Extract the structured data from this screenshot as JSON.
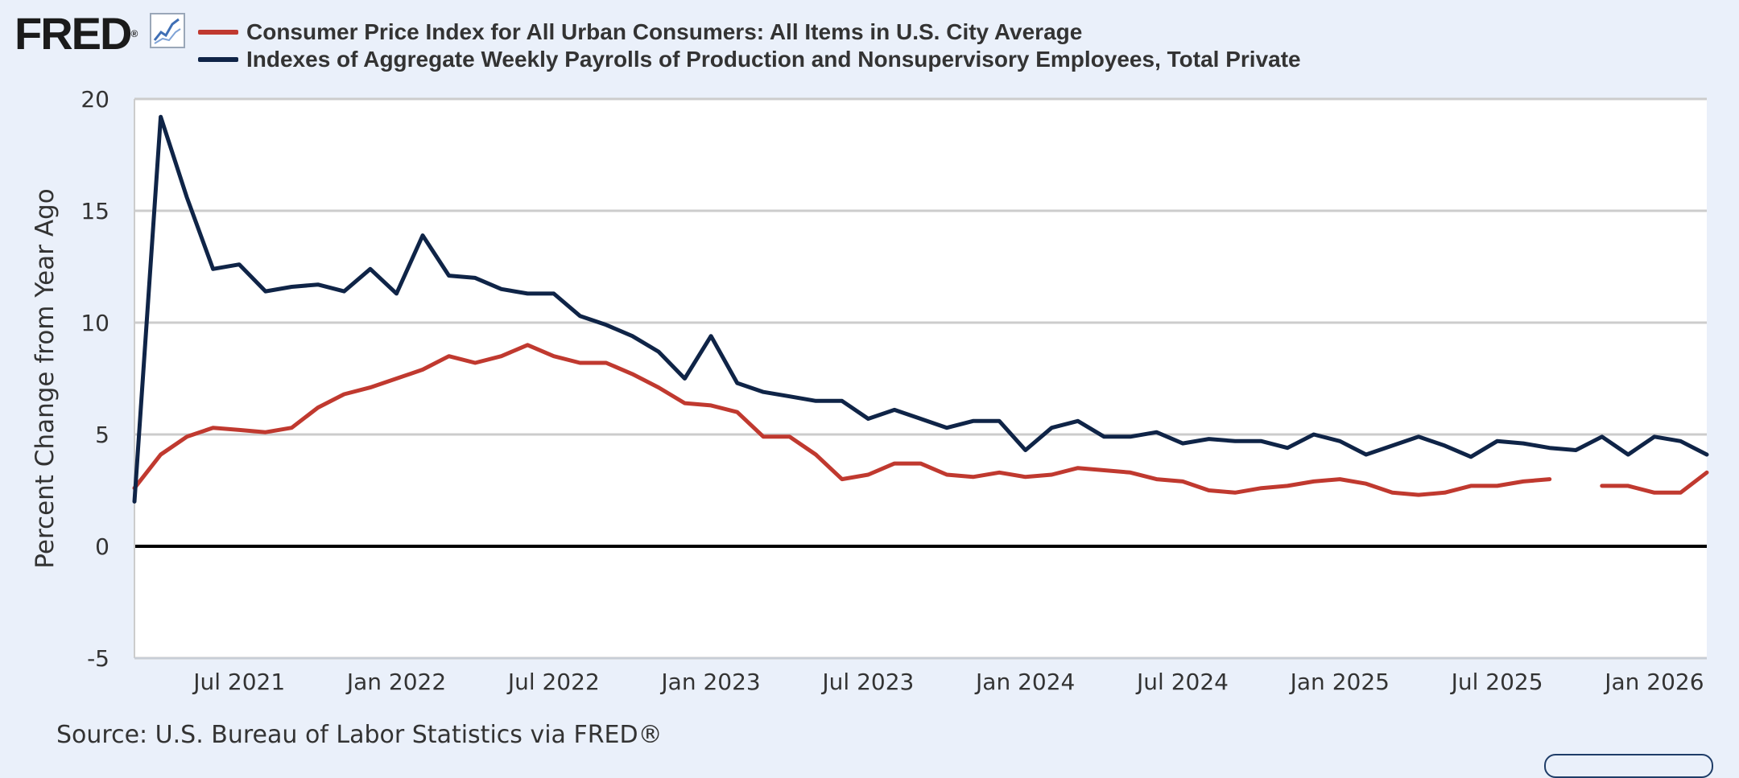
{
  "header": {
    "logo_text": "FRED",
    "logo_mark": "®",
    "icon": "line-graph-icon"
  },
  "chart_data": {
    "type": "line",
    "ylabel": "Percent Change from Year Ago",
    "ylim": [
      -5,
      20
    ],
    "yticks": [
      -5,
      0,
      5,
      10,
      15,
      20
    ],
    "xlim": [
      "2021-03",
      "2026-03"
    ],
    "xticks": [
      {
        "date": "2021-07",
        "label": "Jul 2021"
      },
      {
        "date": "2022-01",
        "label": "Jan 2022"
      },
      {
        "date": "2022-07",
        "label": "Jul 2022"
      },
      {
        "date": "2023-01",
        "label": "Jan 2023"
      },
      {
        "date": "2023-07",
        "label": "Jul 2023"
      },
      {
        "date": "2024-01",
        "label": "Jan 2024"
      },
      {
        "date": "2024-07",
        "label": "Jul 2024"
      },
      {
        "date": "2025-01",
        "label": "Jan 2025"
      },
      {
        "date": "2025-07",
        "label": "Jul 2025"
      },
      {
        "date": "2026-01",
        "label": "Jan 2026"
      }
    ],
    "grid": true,
    "legend_position": "top-left",
    "series": [
      {
        "name": "Consumer Price Index for All Urban Consumers: All Items in U.S. City Average",
        "color": "#c0392f",
        "points": [
          [
            "2021-03",
            2.6
          ],
          [
            "2021-04",
            4.1
          ],
          [
            "2021-05",
            4.9
          ],
          [
            "2021-06",
            5.3
          ],
          [
            "2021-07",
            5.2
          ],
          [
            "2021-08",
            5.1
          ],
          [
            "2021-09",
            5.3
          ],
          [
            "2021-10",
            6.2
          ],
          [
            "2021-11",
            6.8
          ],
          [
            "2021-12",
            7.1
          ],
          [
            "2022-01",
            7.5
          ],
          [
            "2022-02",
            7.9
          ],
          [
            "2022-03",
            8.5
          ],
          [
            "2022-04",
            8.2
          ],
          [
            "2022-05",
            8.5
          ],
          [
            "2022-06",
            9.0
          ],
          [
            "2022-07",
            8.5
          ],
          [
            "2022-08",
            8.2
          ],
          [
            "2022-09",
            8.2
          ],
          [
            "2022-10",
            7.7
          ],
          [
            "2022-11",
            7.1
          ],
          [
            "2022-12",
            6.4
          ],
          [
            "2023-01",
            6.3
          ],
          [
            "2023-02",
            6.0
          ],
          [
            "2023-03",
            4.9
          ],
          [
            "2023-04",
            4.9
          ],
          [
            "2023-05",
            4.1
          ],
          [
            "2023-06",
            3.0
          ],
          [
            "2023-07",
            3.2
          ],
          [
            "2023-08",
            3.7
          ],
          [
            "2023-09",
            3.7
          ],
          [
            "2023-10",
            3.2
          ],
          [
            "2023-11",
            3.1
          ],
          [
            "2023-12",
            3.3
          ],
          [
            "2024-01",
            3.1
          ],
          [
            "2024-02",
            3.2
          ],
          [
            "2024-03",
            3.5
          ],
          [
            "2024-04",
            3.4
          ],
          [
            "2024-05",
            3.3
          ],
          [
            "2024-06",
            3.0
          ],
          [
            "2024-07",
            2.9
          ],
          [
            "2024-08",
            2.5
          ],
          [
            "2024-09",
            2.4
          ],
          [
            "2024-10",
            2.6
          ],
          [
            "2024-11",
            2.7
          ],
          [
            "2024-12",
            2.9
          ],
          [
            "2025-01",
            3.0
          ],
          [
            "2025-02",
            2.8
          ],
          [
            "2025-03",
            2.4
          ],
          [
            "2025-04",
            2.3
          ],
          [
            "2025-05",
            2.4
          ],
          [
            "2025-06",
            2.7
          ],
          [
            "2025-07",
            2.7
          ],
          [
            "2025-08",
            2.9
          ],
          [
            "2025-09",
            3.0
          ],
          [
            "2025-10",
            null
          ],
          [
            "2025-11",
            2.7
          ],
          [
            "2025-12",
            2.7
          ],
          [
            "2026-01",
            2.4
          ],
          [
            "2026-02",
            2.4
          ],
          [
            "2026-03",
            3.3
          ]
        ]
      },
      {
        "name": "Indexes of Aggregate Weekly Payrolls of Production and Nonsupervisory Employees, Total Private",
        "color": "#0f2447",
        "points": [
          [
            "2021-03",
            2.0
          ],
          [
            "2021-04",
            19.2
          ],
          [
            "2021-05",
            15.6
          ],
          [
            "2021-06",
            12.4
          ],
          [
            "2021-07",
            12.6
          ],
          [
            "2021-08",
            11.4
          ],
          [
            "2021-09",
            11.6
          ],
          [
            "2021-10",
            11.7
          ],
          [
            "2021-11",
            11.4
          ],
          [
            "2021-12",
            12.4
          ],
          [
            "2022-01",
            11.3
          ],
          [
            "2022-02",
            13.9
          ],
          [
            "2022-03",
            12.1
          ],
          [
            "2022-04",
            12.0
          ],
          [
            "2022-05",
            11.5
          ],
          [
            "2022-06",
            11.3
          ],
          [
            "2022-07",
            11.3
          ],
          [
            "2022-08",
            10.3
          ],
          [
            "2022-09",
            9.9
          ],
          [
            "2022-10",
            9.4
          ],
          [
            "2022-11",
            8.7
          ],
          [
            "2022-12",
            7.5
          ],
          [
            "2023-01",
            9.4
          ],
          [
            "2023-02",
            7.3
          ],
          [
            "2023-03",
            6.9
          ],
          [
            "2023-04",
            6.7
          ],
          [
            "2023-05",
            6.5
          ],
          [
            "2023-06",
            6.5
          ],
          [
            "2023-07",
            5.7
          ],
          [
            "2023-08",
            6.1
          ],
          [
            "2023-09",
            5.7
          ],
          [
            "2023-10",
            5.3
          ],
          [
            "2023-11",
            5.6
          ],
          [
            "2023-12",
            5.6
          ],
          [
            "2024-01",
            4.3
          ],
          [
            "2024-02",
            5.3
          ],
          [
            "2024-03",
            5.6
          ],
          [
            "2024-04",
            4.9
          ],
          [
            "2024-05",
            4.9
          ],
          [
            "2024-06",
            5.1
          ],
          [
            "2024-07",
            4.6
          ],
          [
            "2024-08",
            4.8
          ],
          [
            "2024-09",
            4.7
          ],
          [
            "2024-10",
            4.7
          ],
          [
            "2024-11",
            4.4
          ],
          [
            "2024-12",
            5.0
          ],
          [
            "2025-01",
            4.7
          ],
          [
            "2025-02",
            4.1
          ],
          [
            "2025-03",
            4.5
          ],
          [
            "2025-04",
            4.9
          ],
          [
            "2025-05",
            4.5
          ],
          [
            "2025-06",
            4.0
          ],
          [
            "2025-07",
            4.7
          ],
          [
            "2025-08",
            4.6
          ],
          [
            "2025-09",
            4.4
          ],
          [
            "2025-10",
            4.3
          ],
          [
            "2025-11",
            4.9
          ],
          [
            "2025-12",
            4.1
          ],
          [
            "2026-01",
            4.9
          ],
          [
            "2026-02",
            4.7
          ],
          [
            "2026-03",
            4.1
          ]
        ]
      }
    ]
  },
  "footer": {
    "source": "Source: U.S. Bureau of Labor Statistics via FRED®"
  },
  "colors": {
    "background": "#eaf0fa",
    "plot_background": "#ffffff",
    "grid": "#cccccc",
    "zero_line": "#000000"
  }
}
